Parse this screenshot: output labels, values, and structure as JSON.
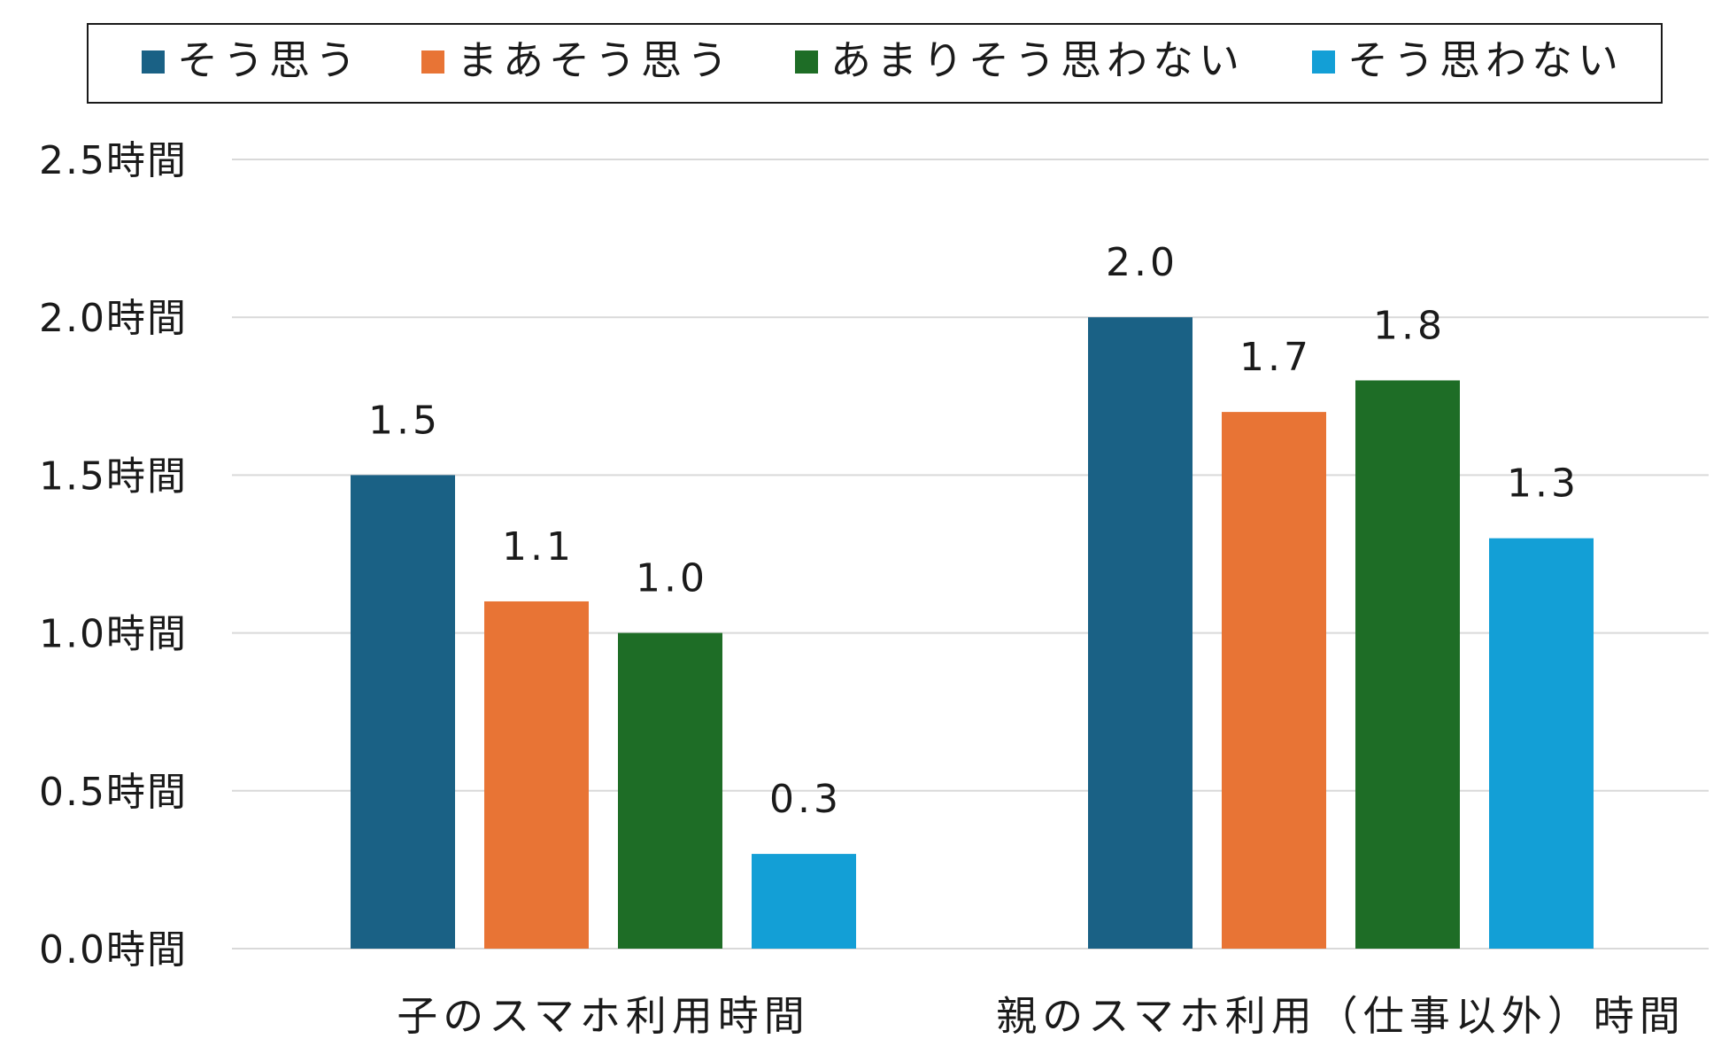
{
  "chart_data": {
    "type": "bar",
    "categories": [
      "子のスマホ利用時間",
      "親のスマホ利用（仕事以外）時間"
    ],
    "series": [
      {
        "name": "そう思う",
        "values": [
          1.5,
          2.0
        ],
        "labels": [
          "1.5",
          "2.0"
        ],
        "color": "#1a6185"
      },
      {
        "name": "まあそう思う",
        "values": [
          1.1,
          1.7
        ],
        "labels": [
          "1.1",
          "1.7"
        ],
        "color": "#e87435"
      },
      {
        "name": "あまりそう思わない",
        "values": [
          1.0,
          1.8
        ],
        "labels": [
          "1.0",
          "1.8"
        ],
        "color": "#1e6d26"
      },
      {
        "name": "そう思わない",
        "values": [
          0.3,
          1.3
        ],
        "labels": [
          "0.3",
          "1.3"
        ],
        "color": "#139fd6"
      }
    ],
    "y_ticks": [
      "0.0時間",
      "0.5時間",
      "1.0時間",
      "1.5時間",
      "2.0時間",
      "2.5時間"
    ],
    "ylim": [
      0,
      2.5
    ],
    "grid": true,
    "legend_position": "top"
  }
}
